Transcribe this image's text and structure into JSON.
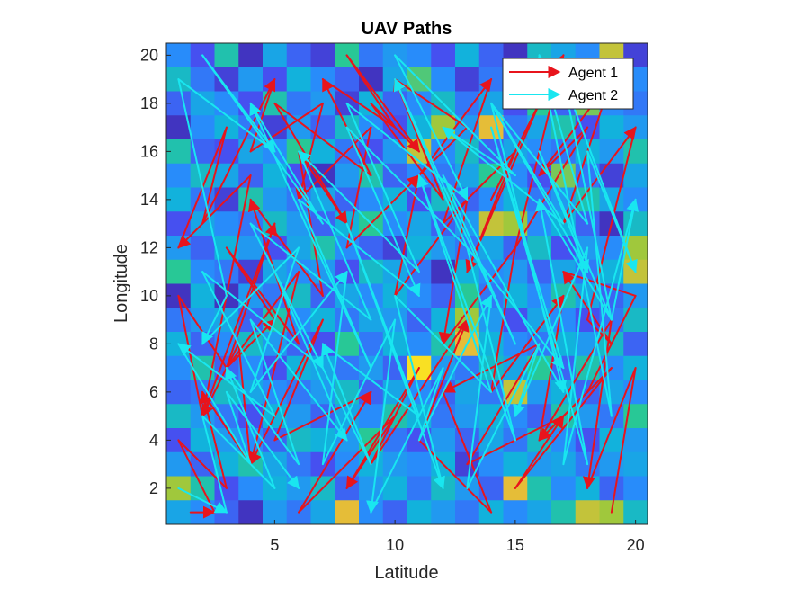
{
  "chart_data": {
    "type": "line",
    "title": "UAV Paths",
    "xlabel": "Latitude",
    "ylabel": "Longitude",
    "xlim": [
      0.5,
      20.5
    ],
    "ylim": [
      0.5,
      20.5
    ],
    "x_ticks": [
      5,
      10,
      15,
      20
    ],
    "y_ticks": [
      2,
      4,
      6,
      8,
      10,
      12,
      14,
      16,
      18,
      20
    ],
    "grid": false,
    "legend_position": "top-right",
    "background": {
      "type": "heatmap",
      "colormap": "parula",
      "rows": 20,
      "cols": 20,
      "note_values": "approximate normalized cell intensities 0-1",
      "values": [
        [
          0.3,
          0.15,
          0.55,
          0.05,
          0.4,
          0.2,
          0.1,
          0.6,
          0.25,
          0.35,
          0.3,
          0.15,
          0.45,
          0.2,
          0.05,
          0.5,
          0.4,
          0.3,
          0.8,
          0.1
        ],
        [
          0.5,
          0.25,
          0.1,
          0.35,
          0.15,
          0.45,
          0.3,
          0.2,
          0.05,
          0.4,
          0.65,
          0.3,
          0.1,
          0.25,
          0.55,
          0.15,
          0.35,
          0.2,
          0.85,
          0.3
        ],
        [
          0.2,
          0.4,
          0.3,
          0.15,
          0.55,
          0.25,
          0.35,
          0.1,
          0.45,
          0.2,
          0.3,
          0.5,
          0.25,
          0.4,
          0.15,
          0.6,
          0.2,
          0.7,
          0.3,
          0.25
        ],
        [
          0.05,
          0.3,
          0.45,
          0.25,
          0.1,
          0.35,
          0.2,
          0.5,
          0.3,
          0.15,
          0.45,
          0.75,
          0.35,
          0.85,
          0.25,
          0.4,
          0.55,
          0.15,
          0.45,
          0.35
        ],
        [
          0.55,
          0.2,
          0.15,
          0.4,
          0.3,
          0.6,
          0.45,
          0.25,
          0.15,
          0.35,
          0.8,
          0.3,
          0.5,
          0.2,
          0.4,
          0.3,
          0.25,
          0.45,
          0.35,
          0.55
        ],
        [
          0.3,
          0.5,
          0.4,
          0.2,
          0.45,
          0.15,
          0.05,
          0.35,
          0.55,
          0.2,
          0.3,
          0.25,
          0.4,
          0.6,
          0.3,
          0.15,
          0.7,
          0.25,
          0.1,
          0.4
        ],
        [
          0.45,
          0.25,
          0.1,
          0.55,
          0.35,
          0.25,
          0.4,
          0.2,
          0.3,
          0.45,
          0.15,
          0.5,
          0.2,
          0.3,
          0.45,
          0.25,
          0.35,
          0.55,
          0.4,
          0.3
        ],
        [
          0.15,
          0.4,
          0.3,
          0.25,
          0.5,
          0.35,
          0.2,
          0.45,
          0.6,
          0.3,
          0.4,
          0.2,
          0.35,
          0.8,
          0.75,
          0.3,
          0.45,
          0.2,
          0.05,
          0.5
        ],
        [
          0.35,
          0.2,
          0.45,
          0.35,
          0.15,
          0.4,
          0.55,
          0.3,
          0.2,
          0.1,
          0.45,
          0.35,
          0.25,
          0.4,
          0.2,
          0.5,
          0.15,
          0.35,
          0.3,
          0.75
        ],
        [
          0.6,
          0.3,
          0.25,
          0.1,
          0.4,
          0.3,
          0.35,
          0.15,
          0.5,
          0.4,
          0.25,
          0.05,
          0.45,
          0.3,
          0.35,
          0.2,
          0.4,
          0.25,
          0.45,
          0.8
        ],
        [
          0.05,
          0.45,
          0.05,
          0.35,
          0.25,
          0.5,
          0.2,
          0.4,
          0.3,
          0.45,
          0.3,
          0.2,
          0.6,
          0.25,
          0.45,
          0.3,
          0.55,
          0.4,
          0.2,
          0.35
        ],
        [
          0.25,
          0.35,
          0.4,
          0.2,
          0.55,
          0.3,
          0.45,
          0.25,
          0.4,
          0.35,
          0.2,
          0.45,
          0.75,
          0.35,
          0.15,
          0.4,
          0.3,
          0.15,
          0.25,
          0.5
        ],
        [
          0.45,
          0.2,
          0.3,
          0.5,
          0.35,
          0.2,
          0.15,
          0.6,
          0.25,
          0.45,
          0.3,
          0.55,
          0.85,
          0.45,
          0.3,
          0.25,
          0.45,
          0.35,
          0.5,
          0.2
        ],
        [
          0.3,
          0.55,
          0.2,
          0.3,
          0.15,
          0.45,
          0.4,
          0.25,
          0.35,
          0.2,
          0.95,
          0.35,
          0.25,
          0.5,
          0.4,
          0.6,
          0.2,
          0.55,
          0.3,
          0.45
        ],
        [
          0.2,
          0.25,
          0.5,
          0.4,
          0.3,
          0.25,
          0.35,
          0.5,
          0.2,
          0.4,
          0.3,
          0.2,
          0.4,
          0.25,
          0.8,
          0.35,
          0.45,
          0.2,
          0.4,
          0.3
        ],
        [
          0.5,
          0.35,
          0.25,
          0.15,
          0.45,
          0.35,
          0.2,
          0.4,
          0.3,
          0.55,
          0.45,
          0.25,
          0.35,
          0.45,
          0.3,
          0.2,
          0.55,
          0.35,
          0.25,
          0.6
        ],
        [
          0.15,
          0.45,
          0.35,
          0.3,
          0.2,
          0.5,
          0.45,
          0.35,
          0.6,
          0.25,
          0.15,
          0.35,
          0.2,
          0.4,
          0.25,
          0.5,
          0.3,
          0.15,
          0.45,
          0.35
        ],
        [
          0.35,
          0.2,
          0.45,
          0.55,
          0.4,
          0.25,
          0.15,
          0.3,
          0.45,
          0.35,
          0.3,
          0.45,
          0.1,
          0.3,
          0.45,
          0.35,
          0.4,
          0.25,
          0.35,
          0.4
        ],
        [
          0.75,
          0.55,
          0.15,
          0.3,
          0.45,
          0.35,
          0.5,
          0.2,
          0.35,
          0.45,
          0.25,
          0.5,
          0.35,
          0.2,
          0.85,
          0.55,
          0.3,
          0.45,
          0.2,
          0.3
        ],
        [
          0.4,
          0.3,
          0.2,
          0.05,
          0.35,
          0.25,
          0.4,
          0.85,
          0.3,
          0.2,
          0.45,
          0.35,
          0.25,
          0.45,
          0.3,
          0.4,
          0.55,
          0.8,
          0.75,
          0.5
        ]
      ]
    },
    "series": [
      {
        "name": "Agent 1",
        "color": "#e8141c",
        "x": [
          1.5,
          2.5,
          1,
          3,
          2,
          4,
          3.5,
          2,
          1,
          3,
          5,
          3,
          6,
          4,
          7,
          6,
          8,
          5,
          9,
          7,
          10,
          8,
          11,
          9,
          12,
          10,
          13,
          11,
          14,
          12,
          15,
          13,
          16,
          14,
          17,
          15,
          18,
          16,
          19,
          17,
          20,
          18,
          19,
          17,
          20,
          18,
          16,
          19,
          15,
          17,
          13,
          16,
          12,
          14,
          11,
          13,
          9,
          11,
          8,
          10,
          6,
          9,
          5,
          7,
          4,
          6,
          3,
          5,
          2,
          4,
          1,
          3,
          2,
          5,
          4,
          7,
          6,
          9,
          8,
          11,
          10,
          13,
          12,
          15,
          14,
          17,
          16,
          19,
          18,
          20,
          19
        ],
        "y": [
          1,
          1,
          4,
          2,
          6,
          3,
          8,
          5,
          10,
          7,
          9,
          12,
          8,
          14,
          10,
          16,
          13,
          18,
          15,
          19,
          17,
          20,
          16,
          18,
          14,
          19,
          17,
          15,
          19,
          13,
          16,
          11,
          18,
          14,
          20,
          12,
          17,
          15,
          19,
          13,
          17,
          9,
          8,
          11,
          10,
          6,
          4,
          7,
          2,
          5,
          3,
          8,
          6,
          1,
          4,
          9,
          3,
          7,
          2,
          5,
          1,
          6,
          4,
          9,
          3,
          11,
          7,
          13,
          5,
          15,
          12,
          17,
          13,
          19,
          16,
          18,
          14,
          17,
          12,
          15,
          10,
          14,
          8,
          12,
          6,
          10,
          4,
          9,
          2,
          7,
          1
        ]
      },
      {
        "name": "Agent 2",
        "color": "#19e6f0",
        "x": [
          1,
          3,
          2,
          5,
          3,
          6,
          4,
          8,
          5,
          9,
          7,
          11,
          8,
          12,
          10,
          14,
          11,
          15,
          13,
          17,
          14,
          18,
          16,
          19,
          17,
          20,
          18,
          19,
          16,
          18,
          14,
          17,
          12,
          15,
          10,
          13,
          8,
          11,
          6,
          9,
          4,
          7,
          2,
          5,
          1,
          3,
          2,
          6,
          4,
          8,
          7,
          10,
          9,
          12,
          11,
          14,
          13,
          16,
          15,
          18,
          17,
          20,
          19,
          16,
          18,
          14,
          17,
          12,
          15,
          10,
          13,
          8,
          11,
          6,
          9,
          4,
          7,
          2,
          5,
          1,
          4,
          3,
          6
        ],
        "y": [
          2,
          1,
          5,
          2,
          7,
          3,
          9,
          4,
          11,
          3,
          8,
          5,
          13,
          2,
          10,
          6,
          15,
          4,
          12,
          7,
          17,
          3,
          14,
          9,
          19,
          11,
          16,
          5,
          20,
          13,
          18,
          6,
          15,
          8,
          19,
          12,
          17,
          10,
          14,
          7,
          18,
          13,
          20,
          16,
          19,
          10,
          8,
          12,
          6,
          11,
          3,
          9,
          1,
          7,
          4,
          10,
          2,
          8,
          5,
          12,
          3,
          14,
          9,
          16,
          11,
          18,
          13,
          17,
          15,
          20,
          14,
          18,
          11,
          16,
          9,
          13,
          7,
          11,
          5,
          8,
          3,
          6,
          2
        ]
      }
    ]
  }
}
